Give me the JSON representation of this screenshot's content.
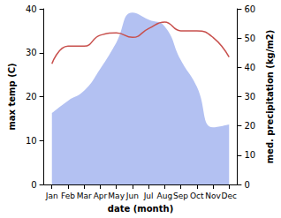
{
  "chart_data": {
    "type": "line",
    "x_label": "date (month)",
    "y_label": "max temp (C)",
    "y2_label": "med. precipitation (kg/m2)",
    "categories": [
      "Jan",
      "Feb",
      "Mar",
      "Apr",
      "May",
      "Jun",
      "Jul",
      "Aug",
      "Sep",
      "Oct",
      "Nov",
      "Dec"
    ],
    "ylim": [
      0,
      40
    ],
    "yticks": [
      0,
      10,
      20,
      30,
      40
    ],
    "y2lim": [
      0,
      60
    ],
    "y2ticks": [
      0,
      10,
      20,
      30,
      40,
      50,
      60
    ],
    "grid": false,
    "series": [
      {
        "type": "area",
        "axis": "y2",
        "color": "#b3c1f2",
        "values": [
          24.4,
          28.6,
          32,
          39.5,
          48.5,
          58.7,
          56.3,
          54,
          42.5,
          33.4,
          19.5,
          20.5
        ]
      },
      {
        "type": "line",
        "color": "#c8504d",
        "values": [
          27.5,
          31.5,
          31.5,
          34,
          34.5,
          33.5,
          35.5,
          37,
          35,
          35,
          33.5,
          29
        ]
      }
    ]
  }
}
